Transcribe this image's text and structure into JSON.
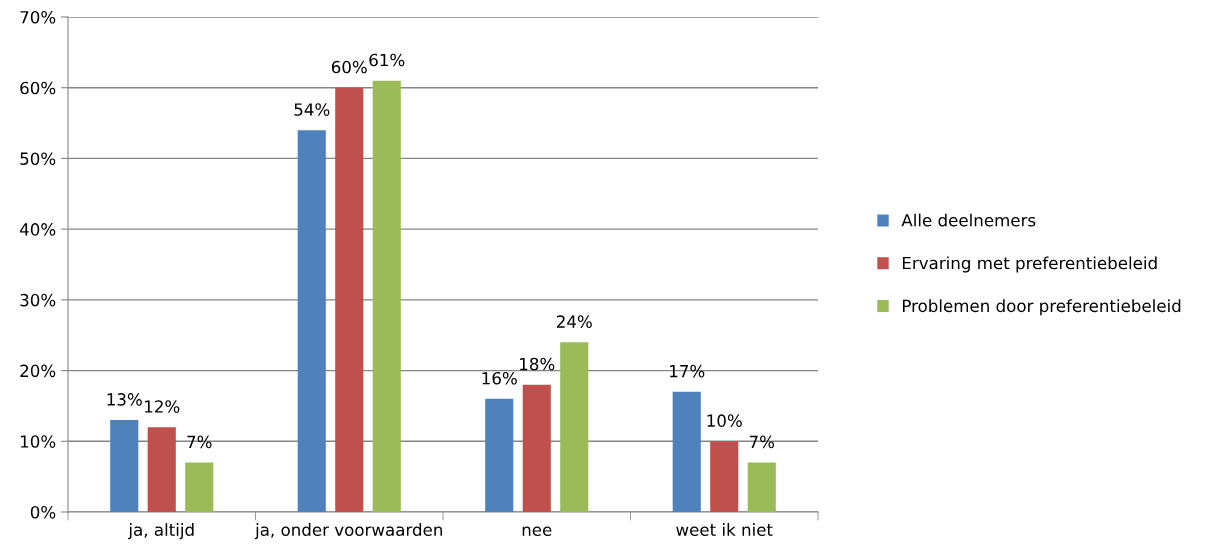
{
  "chart_data": {
    "type": "bar",
    "categories": [
      "ja, altijd",
      "ja, onder voorwaarden",
      "nee",
      "weet ik niet"
    ],
    "series": [
      {
        "name": "Alle deelnemers",
        "color": "#4f81bd",
        "values": [
          13,
          54,
          16,
          17
        ],
        "value_labels": [
          "13%",
          "54%",
          "16%",
          "17%"
        ]
      },
      {
        "name": "Ervaring met preferentiebeleid",
        "color": "#c0504d",
        "values": [
          12,
          60,
          18,
          10
        ],
        "value_labels": [
          "12%",
          "60%",
          "18%",
          "10%"
        ]
      },
      {
        "name": "Problemen door preferentiebeleid",
        "color": "#9bbb59",
        "values": [
          7,
          61,
          24,
          7
        ],
        "value_labels": [
          "7%",
          "61%",
          "24%",
          "7%"
        ]
      }
    ],
    "ylim": [
      0,
      70
    ],
    "yticks": [
      {
        "value": 0,
        "label": "0%"
      },
      {
        "value": 10,
        "label": "10%"
      },
      {
        "value": 20,
        "label": "20%"
      },
      {
        "value": 30,
        "label": "30%"
      },
      {
        "value": 40,
        "label": "40%"
      },
      {
        "value": 50,
        "label": "50%"
      },
      {
        "value": 60,
        "label": "60%"
      },
      {
        "value": 70,
        "label": "70%"
      }
    ],
    "grid": "y",
    "legend": "right"
  }
}
